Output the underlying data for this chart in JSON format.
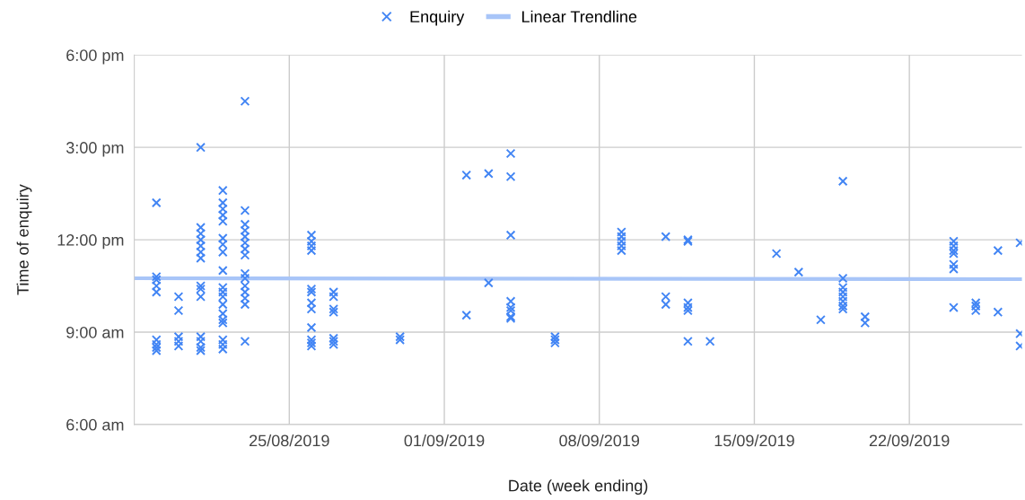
{
  "chart_data": {
    "type": "scatter",
    "xlabel": "Date (week ending)",
    "ylabel": "Time of enquiry",
    "xlim": [
      "2019-08-18",
      "2019-09-27T02:00"
    ],
    "xticks": [
      {
        "value": "2019-08-25",
        "label": "25/08/2019"
      },
      {
        "value": "2019-09-01",
        "label": "01/09/2019"
      },
      {
        "value": "2019-09-08",
        "label": "08/09/2019"
      },
      {
        "value": "2019-09-15",
        "label": "15/09/2019"
      },
      {
        "value": "2019-09-22",
        "label": "22/09/2019"
      }
    ],
    "ylim": [
      6,
      18
    ],
    "yticks": [
      {
        "value": 6,
        "label": "6:00 am"
      },
      {
        "value": 9,
        "label": "9:00 am"
      },
      {
        "value": 12,
        "label": "12:00 pm"
      },
      {
        "value": 15,
        "label": "3:00 pm"
      },
      {
        "value": 18,
        "label": "6:00 pm"
      }
    ],
    "grid": true,
    "legend": "top",
    "marker": "cross",
    "series": [
      {
        "name": "Enquiry",
        "color": "#4285f4",
        "x": [
          "2019-08-19",
          "2019-08-19",
          "2019-08-19",
          "2019-08-19",
          "2019-08-19",
          "2019-08-19",
          "2019-08-19",
          "2019-08-19",
          "2019-08-19",
          "2019-08-20",
          "2019-08-20",
          "2019-08-20",
          "2019-08-20",
          "2019-08-20",
          "2019-08-21",
          "2019-08-21",
          "2019-08-21",
          "2019-08-21",
          "2019-08-21",
          "2019-08-21",
          "2019-08-21",
          "2019-08-21",
          "2019-08-21",
          "2019-08-21",
          "2019-08-21",
          "2019-08-21",
          "2019-08-21",
          "2019-08-21",
          "2019-08-22",
          "2019-08-22",
          "2019-08-22",
          "2019-08-22",
          "2019-08-22",
          "2019-08-22",
          "2019-08-22",
          "2019-08-22",
          "2019-08-22",
          "2019-08-22",
          "2019-08-22",
          "2019-08-22",
          "2019-08-22",
          "2019-08-22",
          "2019-08-22",
          "2019-08-22",
          "2019-08-22",
          "2019-08-22",
          "2019-08-22",
          "2019-08-23",
          "2019-08-23",
          "2019-08-23",
          "2019-08-23",
          "2019-08-23",
          "2019-08-23",
          "2019-08-23",
          "2019-08-23",
          "2019-08-23",
          "2019-08-23",
          "2019-08-23",
          "2019-08-23",
          "2019-08-23",
          "2019-08-23",
          "2019-08-23",
          "2019-08-26",
          "2019-08-26",
          "2019-08-26",
          "2019-08-26",
          "2019-08-26",
          "2019-08-26",
          "2019-08-26",
          "2019-08-26",
          "2019-08-26",
          "2019-08-26",
          "2019-08-26",
          "2019-08-26",
          "2019-08-27",
          "2019-08-27",
          "2019-08-27",
          "2019-08-27",
          "2019-08-27",
          "2019-08-27",
          "2019-08-27",
          "2019-08-30",
          "2019-08-30",
          "2019-09-02",
          "2019-09-02",
          "2019-09-03",
          "2019-09-03",
          "2019-09-04",
          "2019-09-04",
          "2019-09-04",
          "2019-09-04",
          "2019-09-04",
          "2019-09-04",
          "2019-09-04",
          "2019-09-04",
          "2019-09-06",
          "2019-09-06",
          "2019-09-06",
          "2019-09-09",
          "2019-09-09",
          "2019-09-09",
          "2019-09-09",
          "2019-09-09",
          "2019-09-11",
          "2019-09-11",
          "2019-09-11",
          "2019-09-12",
          "2019-09-12",
          "2019-09-12",
          "2019-09-12",
          "2019-09-12",
          "2019-09-12",
          "2019-09-13",
          "2019-09-16",
          "2019-09-17",
          "2019-09-18",
          "2019-09-19",
          "2019-09-19",
          "2019-09-19",
          "2019-09-19",
          "2019-09-19",
          "2019-09-19",
          "2019-09-19",
          "2019-09-19",
          "2019-09-20",
          "2019-09-20",
          "2019-09-24",
          "2019-09-24",
          "2019-09-24",
          "2019-09-24",
          "2019-09-24",
          "2019-09-24",
          "2019-09-24",
          "2019-09-25",
          "2019-09-25",
          "2019-09-25",
          "2019-09-26",
          "2019-09-26",
          "2019-09-27",
          "2019-09-27",
          "2019-09-27"
        ],
        "values": [
          13.2,
          10.8,
          10.7,
          10.5,
          10.3,
          8.75,
          8.6,
          8.5,
          8.4,
          10.15,
          9.7,
          8.85,
          8.7,
          8.55,
          15.0,
          12.4,
          12.2,
          12.0,
          11.8,
          11.6,
          11.4,
          10.5,
          10.4,
          10.15,
          8.85,
          8.7,
          8.5,
          8.4,
          13.6,
          13.2,
          13.0,
          12.8,
          12.6,
          12.05,
          11.85,
          11.6,
          11.0,
          10.45,
          10.3,
          10.15,
          9.9,
          9.6,
          9.4,
          9.3,
          8.75,
          8.6,
          8.45,
          16.5,
          12.95,
          12.5,
          12.3,
          12.1,
          11.9,
          11.7,
          11.5,
          10.9,
          10.75,
          10.5,
          10.3,
          10.1,
          9.9,
          8.7,
          12.15,
          11.95,
          11.8,
          11.65,
          10.4,
          10.3,
          9.95,
          9.75,
          9.15,
          8.75,
          8.65,
          8.55,
          10.3,
          10.15,
          9.75,
          9.65,
          8.8,
          8.7,
          8.6,
          8.85,
          8.75,
          14.1,
          9.55,
          14.15,
          10.6,
          14.8,
          14.05,
          12.15,
          10.0,
          9.8,
          9.7,
          9.5,
          9.45,
          8.85,
          8.75,
          8.65,
          12.25,
          12.1,
          11.95,
          11.8,
          11.65,
          12.1,
          10.15,
          9.9,
          12.0,
          11.95,
          9.95,
          9.8,
          9.7,
          8.7,
          8.7,
          11.55,
          10.95,
          9.4,
          13.9,
          10.75,
          10.45,
          10.3,
          10.15,
          10.0,
          9.85,
          9.75,
          9.5,
          9.3,
          11.95,
          11.8,
          11.65,
          11.55,
          11.2,
          11.05,
          9.8,
          9.95,
          9.85,
          9.7,
          11.65,
          9.65,
          11.9,
          8.95,
          8.55
        ]
      },
      {
        "name": "Linear Trendline",
        "type": "line",
        "color": "#a8c5f8",
        "marker": "none",
        "x": [
          "2019-08-18",
          "2019-09-27T02:00"
        ],
        "values": [
          10.75,
          10.72
        ]
      }
    ]
  }
}
